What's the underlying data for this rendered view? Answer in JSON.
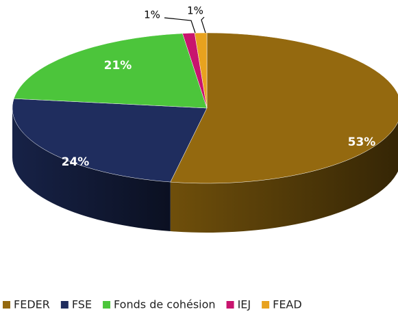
{
  "chart_data": {
    "type": "pie",
    "categories": [
      "FEDER",
      "FSE",
      "Fonds de cohésion",
      "IEJ",
      "FEAD"
    ],
    "values": [
      53,
      24,
      21,
      1,
      1
    ],
    "value_labels": [
      "53%",
      "24%",
      "21%",
      "1%",
      "1%"
    ],
    "colors": [
      "#94690f",
      "#1f2d5e",
      "#4cc53b",
      "#c8146e",
      "#e8a21e"
    ],
    "legend": "bottom"
  }
}
